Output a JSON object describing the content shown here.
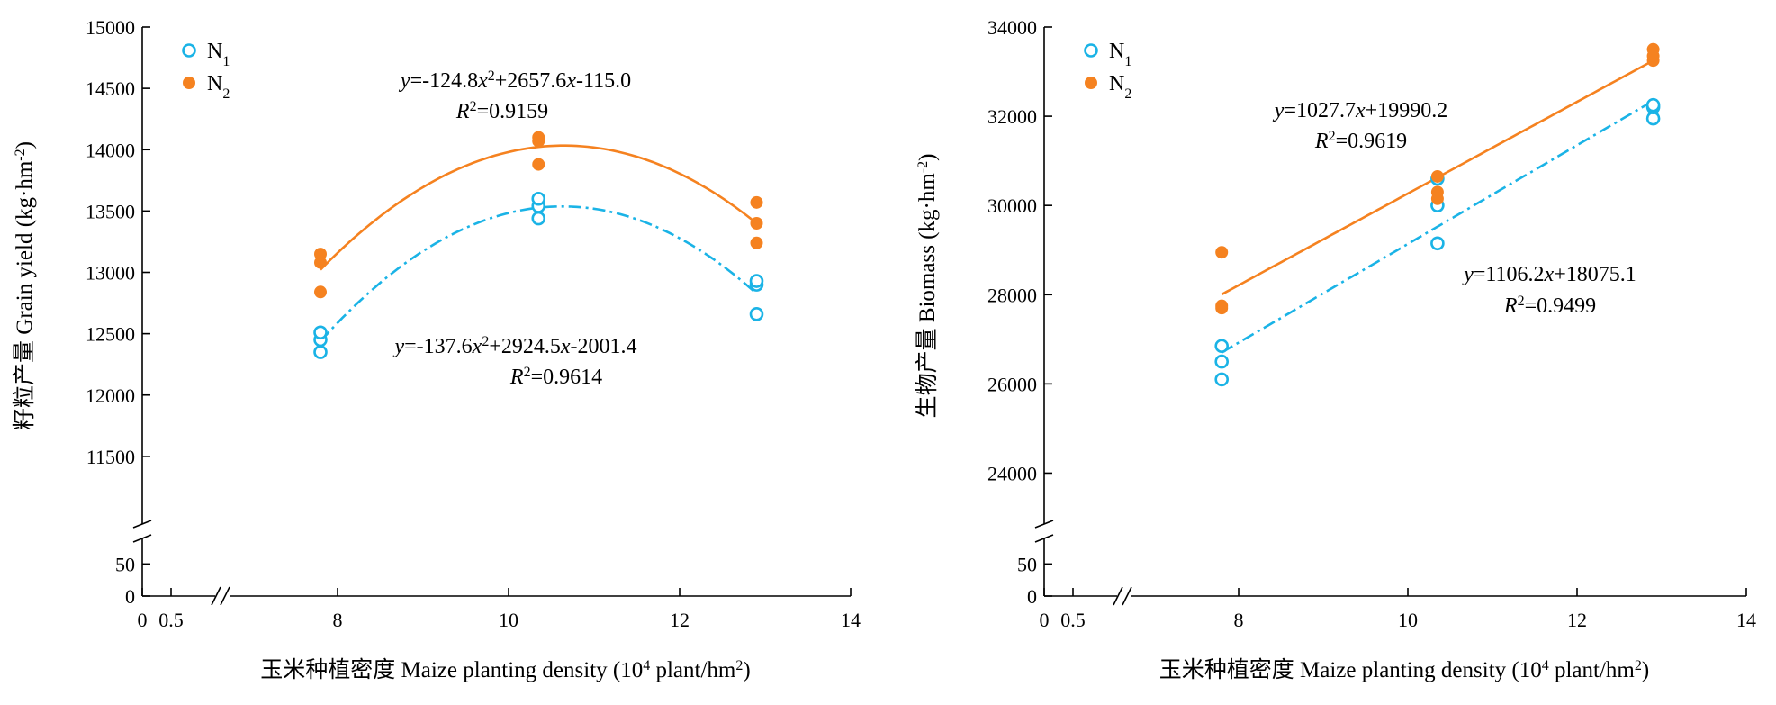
{
  "colors": {
    "N1": "#1ab3e6",
    "N2": "#f58220"
  },
  "chart_data": [
    {
      "type": "scatter",
      "xlabel": "玉米种植密度 Maize planting density (10",
      "xlabel_sup": "4",
      "xlabel_tail": " plant/hm",
      "xlabel_sup2": "2",
      "xlabel_end": ")",
      "ylabel": "籽粒产量 Grain yield (kg·hm",
      "ylabel_sup": "-2",
      "ylabel_end": ")",
      "xlim": [
        0,
        14
      ],
      "xticks": [
        "0",
        "0.5",
        "8",
        "10",
        "12",
        "14"
      ],
      "ylim_upper": [
        11000,
        15000
      ],
      "yticks_upper": [
        "11500",
        "12000",
        "12500",
        "13000",
        "13500",
        "14000",
        "14500",
        "15000"
      ],
      "yticks_lower": [
        "0",
        "50"
      ],
      "legend": [
        "N",
        "N"
      ],
      "legend_subs": [
        "1",
        "2"
      ],
      "legend_position": "top-left",
      "series": [
        {
          "name": "N1",
          "points": [
            [
              7.8,
              12350
            ],
            [
              7.8,
              12450
            ],
            [
              7.8,
              12510
            ],
            [
              10.35,
              13440
            ],
            [
              10.35,
              13540
            ],
            [
              10.35,
              13600
            ],
            [
              12.9,
              12660
            ],
            [
              12.9,
              12900
            ],
            [
              12.9,
              12930
            ]
          ],
          "fit": {
            "kind": "quadratic",
            "a": -137.6,
            "b": 2924.5,
            "c": -2001.4,
            "xrange": [
              7.8,
              12.9
            ]
          },
          "eq_parts": [
            "y",
            "=-137.6",
            "x",
            "2",
            "+2924.5",
            "x",
            "-2001.4"
          ],
          "r2_parts": [
            "R",
            "2",
            "=0.9614"
          ]
        },
        {
          "name": "N2",
          "points": [
            [
              7.8,
              12840
            ],
            [
              7.8,
              13080
            ],
            [
              7.8,
              13150
            ],
            [
              10.35,
              13880
            ],
            [
              10.35,
              14070
            ],
            [
              10.35,
              14100
            ],
            [
              12.9,
              13240
            ],
            [
              12.9,
              13400
            ],
            [
              12.9,
              13570
            ]
          ],
          "fit": {
            "kind": "quadratic",
            "a": -124.8,
            "b": 2657.6,
            "c": -115.0,
            "xrange": [
              7.8,
              12.9
            ]
          },
          "eq_parts": [
            "y",
            "=-124.8",
            "x",
            "2",
            "+2657.6",
            "x",
            "-115.0"
          ],
          "r2_parts": [
            "R",
            "2",
            "=0.9159"
          ]
        }
      ]
    },
    {
      "type": "scatter",
      "xlabel": "玉米种植密度 Maize planting density (10",
      "xlabel_sup": "4",
      "xlabel_tail": " plant/hm",
      "xlabel_sup2": "2",
      "xlabel_end": ")",
      "ylabel": "生物产量 Biomass (kg·hm",
      "ylabel_sup": "-2",
      "ylabel_end": ")",
      "xlim": [
        0,
        14
      ],
      "xticks": [
        "0",
        "0.5",
        "8",
        "10",
        "12",
        "14"
      ],
      "ylim_upper": [
        23000,
        34000
      ],
      "yticks_upper": [
        "24000",
        "26000",
        "28000",
        "30000",
        "32000",
        "34000"
      ],
      "yticks_lower": [
        "0",
        "50"
      ],
      "legend": [
        "N",
        "N"
      ],
      "legend_subs": [
        "1",
        "2"
      ],
      "legend_position": "top-left",
      "series": [
        {
          "name": "N1",
          "points": [
            [
              7.8,
              26100
            ],
            [
              7.8,
              26500
            ],
            [
              7.8,
              26850
            ],
            [
              10.35,
              29150
            ],
            [
              10.35,
              30000
            ],
            [
              10.35,
              30600
            ],
            [
              12.9,
              31950
            ],
            [
              12.9,
              32200
            ],
            [
              12.9,
              32250
            ]
          ],
          "fit": {
            "kind": "linear",
            "a": 1106.2,
            "b": 18075.1,
            "xrange": [
              7.8,
              12.9
            ]
          },
          "eq_parts": [
            "y",
            "=1106.2",
            "x",
            "+18075.1"
          ],
          "r2_parts": [
            "R",
            "2",
            "=0.9499"
          ]
        },
        {
          "name": "N2",
          "points": [
            [
              7.8,
              27700
            ],
            [
              7.8,
              27750
            ],
            [
              7.8,
              28950
            ],
            [
              10.35,
              30150
            ],
            [
              10.35,
              30300
            ],
            [
              10.35,
              30650
            ],
            [
              12.9,
              33250
            ],
            [
              12.9,
              33350
            ],
            [
              12.9,
              33500
            ]
          ],
          "fit": {
            "kind": "linear",
            "a": 1027.7,
            "b": 19990.2,
            "xrange": [
              7.8,
              12.9
            ]
          },
          "eq_parts": [
            "y",
            "=1027.7",
            "x",
            "+19990.2"
          ],
          "r2_parts": [
            "R",
            "2",
            "=0.9619"
          ]
        }
      ]
    }
  ]
}
